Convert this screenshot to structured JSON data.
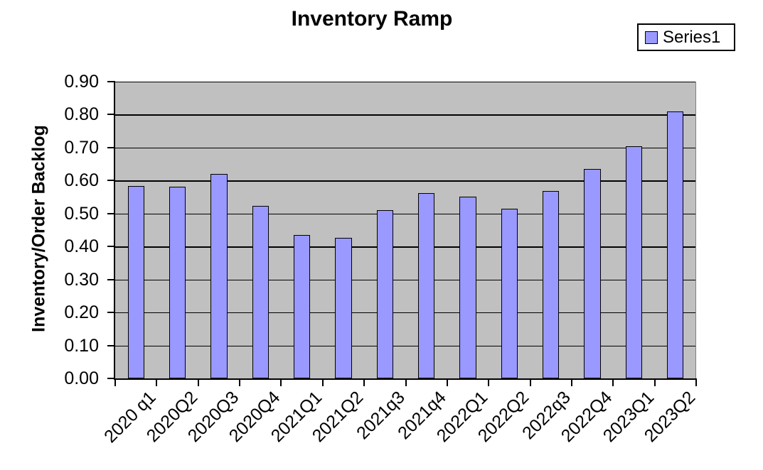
{
  "chart_data": {
    "type": "bar",
    "title": "Inventory Ramp",
    "ylabel": "Inventory/Order Backlog",
    "xlabel": "",
    "categories": [
      "2020 q1",
      "2020Q2",
      "2020Q3",
      "2020Q4",
      "2021Q1",
      "2021Q2",
      "2021q3",
      "2021q4",
      "2022Q1",
      "2022Q2",
      "2022q3",
      "2022Q4",
      "2023Q1",
      "2023Q2"
    ],
    "series": [
      {
        "name": "Series1",
        "values": [
          0.583,
          0.581,
          0.621,
          0.523,
          0.435,
          0.426,
          0.511,
          0.561,
          0.552,
          0.514,
          0.568,
          0.635,
          0.705,
          0.81
        ]
      }
    ],
    "ylim": [
      0,
      0.9
    ],
    "ytick_step": 0.1,
    "ytick_labels": [
      "0.00",
      "0.10",
      "0.20",
      "0.30",
      "0.40",
      "0.50",
      "0.60",
      "0.70",
      "0.80",
      "0.90"
    ],
    "grid": true,
    "legend_position": "top-right",
    "legend_entries": [
      "Series1"
    ],
    "bar_gap_percent": 150,
    "colors": {
      "bar_fill": "#9999FF",
      "bar_border": "#000000",
      "plot_background": "#C0C0C0",
      "gridline": "#000000",
      "axis": "#000000",
      "plot_right_border": "#808080",
      "chart_background": "#FFFFFF",
      "text": "#000000"
    }
  }
}
